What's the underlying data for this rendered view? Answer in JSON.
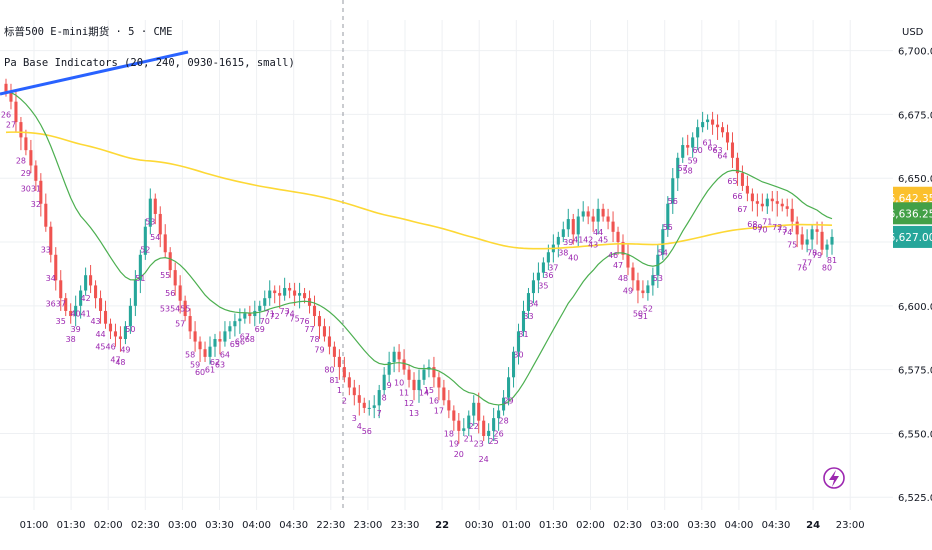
{
  "header": {
    "symbol_line": "标普500 E-mini期货 · 5 · CME",
    "indicator_line": "Pa Base Indicators (20, 240, 0930-1615, small)",
    "currency": "USD"
  },
  "colors": {
    "up": "#26a69a",
    "down": "#ef5350",
    "ema_fast": "#4caf50",
    "ema_slow": "#fdd835",
    "trendline": "#2962ff",
    "bar_label": "#9c27b0",
    "session_divider": "#9598a1"
  },
  "price_badges": [
    {
      "value": "6,642.35",
      "color": "#fbc02d"
    },
    {
      "value": "6,636.25",
      "color": "#43a047"
    },
    {
      "value": "6,627.00",
      "color": "#26a69a"
    }
  ],
  "icons": {
    "flash": "lightning-icon"
  },
  "chart_data": {
    "type": "candlestick",
    "title": "标普500 E-mini期货 · 5 · CME",
    "ylabel": "USD",
    "ylim": [
      6520,
      6712
    ],
    "grid": true,
    "y_ticks": [
      "6,700.00",
      "6,675.00",
      "6,650.00",
      "6,625.00",
      "6,600.00",
      "6,575.00",
      "6,550.00",
      "6,525.00"
    ],
    "y_tick_values": [
      6700,
      6675,
      6650,
      6625,
      6600,
      6575,
      6550,
      6525
    ],
    "x_ticks": [
      "01:00",
      "01:30",
      "02:00",
      "02:30",
      "03:00",
      "03:30",
      "04:00",
      "04:30",
      "22:30",
      "23:00",
      "23:30",
      "22",
      "00:30",
      "01:00",
      "01:30",
      "02:00",
      "02:30",
      "03:00",
      "03:30",
      "04:00",
      "04:30",
      "24",
      "23:00"
    ],
    "closes": [
      6684,
      6680,
      6672,
      6666,
      6661,
      6655,
      6649,
      6640,
      6631,
      6620,
      6610,
      6603,
      6598,
      6596,
      6600,
      6606,
      6612,
      6608,
      6603,
      6598,
      6593,
      6590,
      6588,
      6587,
      6592,
      6600,
      6610,
      6620,
      6631,
      6642,
      6636,
      6628,
      6621,
      6614,
      6608,
      6602,
      6596,
      6590,
      6586,
      6583,
      6580,
      6584,
      6587,
      6586,
      6590,
      6592,
      6594,
      6595,
      6597,
      6596,
      6598,
      6600,
      6603,
      6606,
      6605,
      6604,
      6607,
      6606,
      6604,
      6605,
      6603,
      6600,
      6596,
      6592,
      6588,
      6584,
      6580,
      6576,
      6572,
      6568,
      6565,
      6562,
      6560,
      6560,
      6561,
      6567,
      6573,
      6578,
      6582,
      6579,
      6575,
      6571,
      6567,
      6571,
      6575,
      6576,
      6572,
      6568,
      6563,
      6559,
      6555,
      6551,
      6552,
      6557,
      6562,
      6555,
      6549,
      6551,
      6556,
      6559,
      6564,
      6572,
      6582,
      6590,
      6598,
      6605,
      6610,
      6613,
      6617,
      6621,
      6624,
      6627,
      6630,
      6634,
      6628,
      6635,
      6637,
      6635,
      6633,
      6638,
      6635,
      6633,
      6629,
      6625,
      6620,
      6615,
      6610,
      6606,
      6605,
      6608,
      6612,
      6620,
      6630,
      6640,
      6650,
      6658,
      6663,
      6662,
      6666,
      6670,
      6672,
      6673,
      6671,
      6670,
      6668,
      6664,
      6658,
      6652,
      6647,
      6644,
      6641,
      6640,
      6639,
      6642,
      6641,
      6640,
      6639,
      6638,
      6633,
      6628,
      6624,
      6626,
      6630,
      6629,
      6622,
      6624,
      6627
    ],
    "ema20_final": 6636.25,
    "ema240_final": 6642.35,
    "last_close": 6627.0,
    "bar_labels": [
      "26",
      "27",
      "28",
      "29",
      "3031",
      "32",
      "33",
      "34",
      "3637",
      "35",
      "38",
      "39",
      "4041",
      "42",
      "43",
      "44",
      "4546",
      "47",
      "48",
      "49",
      "50",
      "51",
      "52",
      "53",
      "54",
      "55",
      "56",
      "535455",
      "57",
      "58",
      "59",
      "60",
      "61",
      "62",
      "63",
      "64",
      "65",
      "66",
      "67",
      "68",
      "69",
      "70",
      "71",
      "72",
      "73",
      "74",
      "75",
      "76",
      "77",
      "78",
      "79",
      "80",
      "81",
      "1",
      "2",
      "3",
      "4",
      "5",
      "6",
      "7",
      "8",
      "9",
      "10",
      "11",
      "12",
      "13",
      "14",
      "15",
      "16",
      "17",
      "18",
      "19",
      "20",
      "21",
      "22",
      "23",
      "24",
      "25",
      "26",
      "28",
      "29",
      "30",
      "31",
      "33",
      "34",
      "35",
      "36",
      "37",
      "38",
      "39",
      "40",
      "41",
      "42",
      "43",
      "44",
      "45",
      "46",
      "47",
      "48",
      "49",
      "50",
      "51",
      "52",
      "53",
      "54",
      "55",
      "56",
      "57",
      "58",
      "59",
      "60",
      "61",
      "62",
      "63",
      "64",
      "65",
      "66",
      "67",
      "68",
      "69",
      "70",
      "71",
      "72",
      "73",
      "74",
      "75",
      "76",
      "77",
      "78",
      "79",
      "80",
      "81"
    ]
  }
}
